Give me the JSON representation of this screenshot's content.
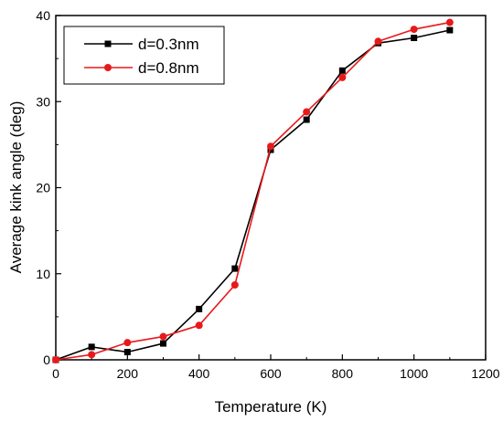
{
  "chart_data": {
    "type": "line",
    "title": "",
    "xlabel": "Temperature (K)",
    "ylabel": "Average kink angle (deg)",
    "xlim": [
      0,
      1200
    ],
    "ylim": [
      0,
      40
    ],
    "xticks": [
      0,
      200,
      400,
      600,
      800,
      1000,
      1200
    ],
    "yticks": [
      0,
      10,
      20,
      30,
      40
    ],
    "grid": false,
    "legend_position": "top-left",
    "series": [
      {
        "name": "d=0.3nm",
        "color": "#000000",
        "marker": "square",
        "x": [
          0,
          100,
          200,
          300,
          400,
          500,
          600,
          700,
          800,
          900,
          1000,
          1100
        ],
        "y": [
          0,
          1.5,
          0.9,
          1.9,
          5.9,
          10.6,
          24.4,
          27.9,
          33.6,
          36.8,
          37.4,
          38.3
        ]
      },
      {
        "name": "d=0.8nm",
        "color": "#e8191b",
        "marker": "circle",
        "x": [
          0,
          100,
          200,
          300,
          400,
          500,
          600,
          700,
          800,
          900,
          1000,
          1100
        ],
        "y": [
          0,
          0.6,
          2.0,
          2.7,
          4.0,
          8.7,
          24.8,
          28.8,
          32.8,
          37.0,
          38.4,
          39.2
        ]
      }
    ]
  }
}
